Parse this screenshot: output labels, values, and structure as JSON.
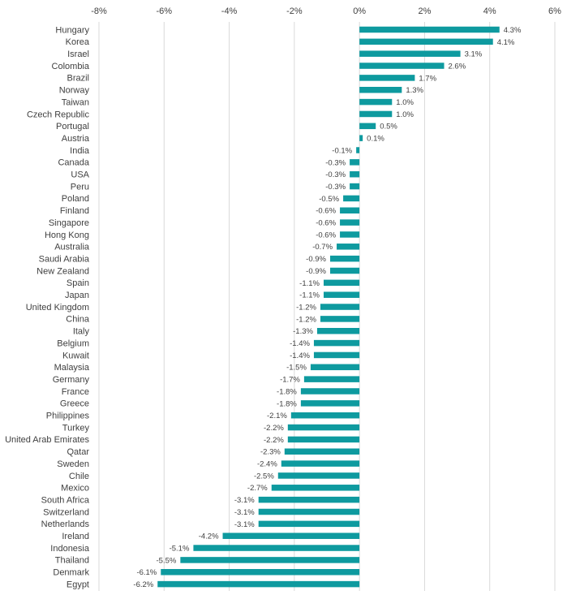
{
  "chart_data": {
    "type": "bar",
    "orientation": "horizontal",
    "title": "",
    "xlabel": "",
    "ylabel": "",
    "xlim": [
      -8,
      6
    ],
    "x_ticks": [
      "-8%",
      "-6%",
      "-4%",
      "-2%",
      "0%",
      "2%",
      "4%",
      "6%"
    ],
    "grid": true,
    "bar_color": "#0e9a9f",
    "categories": [
      "Hungary",
      "Korea",
      "Israel",
      "Colombia",
      "Brazil",
      "Norway",
      "Taiwan",
      "Czech Republic",
      "Portugal",
      "Austria",
      "India",
      "Canada",
      "USA",
      "Peru",
      "Poland",
      "Finland",
      "Singapore",
      "Hong Kong",
      "Australia",
      "Saudi Arabia",
      "New Zealand",
      "Spain",
      "Japan",
      "United Kingdom",
      "China",
      "Italy",
      "Belgium",
      "Kuwait",
      "Malaysia",
      "Germany",
      "France",
      "Greece",
      "Philippines",
      "Turkey",
      "United Arab Emirates",
      "Qatar",
      "Sweden",
      "Chile",
      "Mexico",
      "South Africa",
      "Switzerland",
      "Netherlands",
      "Ireland",
      "Indonesia",
      "Thailand",
      "Denmark",
      "Egypt"
    ],
    "values": [
      4.3,
      4.1,
      3.1,
      2.6,
      1.7,
      1.3,
      1.0,
      1.0,
      0.5,
      0.1,
      -0.1,
      -0.3,
      -0.3,
      -0.3,
      -0.5,
      -0.6,
      -0.6,
      -0.6,
      -0.7,
      -0.9,
      -0.9,
      -1.1,
      -1.1,
      -1.2,
      -1.2,
      -1.3,
      -1.4,
      -1.4,
      -1.5,
      -1.7,
      -1.8,
      -1.8,
      -2.1,
      -2.2,
      -2.2,
      -2.3,
      -2.4,
      -2.5,
      -2.7,
      -3.1,
      -3.1,
      -3.1,
      -4.2,
      -5.1,
      -5.5,
      -6.1,
      -6.2
    ],
    "data_labels": [
      "4.3%",
      "4.1%",
      "3.1%",
      "2.6%",
      "1.7%",
      "1.3%",
      "1.0%",
      "1.0%",
      "0.5%",
      "0.1%",
      "-0.1%",
      "-0.3%",
      "-0.3%",
      "-0.3%",
      "-0.5%",
      "-0.6%",
      "-0.6%",
      "-0.6%",
      "-0.7%",
      "-0.9%",
      "-0.9%",
      "-1.1%",
      "-1.1%",
      "-1.2%",
      "-1.2%",
      "-1.3%",
      "-1.4%",
      "-1.4%",
      "-1.5%",
      "-1.7%",
      "-1.8%",
      "-1.8%",
      "-2.1%",
      "-2.2%",
      "-2.2%",
      "-2.3%",
      "-2.4%",
      "-2.5%",
      "-2.7%",
      "-3.1%",
      "-3.1%",
      "-3.1%",
      "-4.2%",
      "-5.1%",
      "-5.5%",
      "-6.1%",
      "-6.2%"
    ]
  }
}
